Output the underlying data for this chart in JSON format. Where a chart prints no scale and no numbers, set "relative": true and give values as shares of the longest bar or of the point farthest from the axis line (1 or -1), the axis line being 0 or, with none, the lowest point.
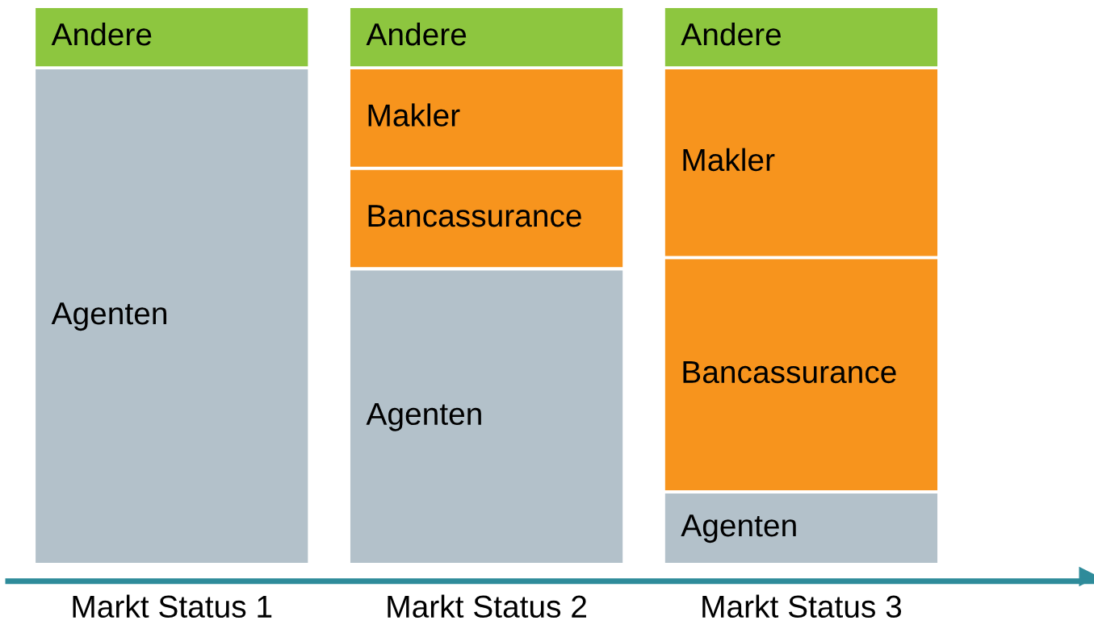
{
  "chart_data": {
    "type": "bar",
    "stacked": true,
    "relative": true,
    "categories": [
      "Markt Status 1",
      "Markt Status 2",
      "Markt Status 3"
    ],
    "series": [
      {
        "name": "Agenten",
        "color": "#b3c1ca",
        "values": [
          0.89,
          0.53,
          0.13
        ]
      },
      {
        "name": "Bancassurance",
        "color": "#f7941d",
        "values": [
          null,
          0.18,
          0.42
        ]
      },
      {
        "name": "Makler",
        "color": "#f7941d",
        "values": [
          null,
          0.18,
          0.34
        ]
      },
      {
        "name": "Andere",
        "color": "#8dc63f",
        "values": [
          0.11,
          0.11,
          0.11
        ]
      }
    ],
    "grid": false
  }
}
